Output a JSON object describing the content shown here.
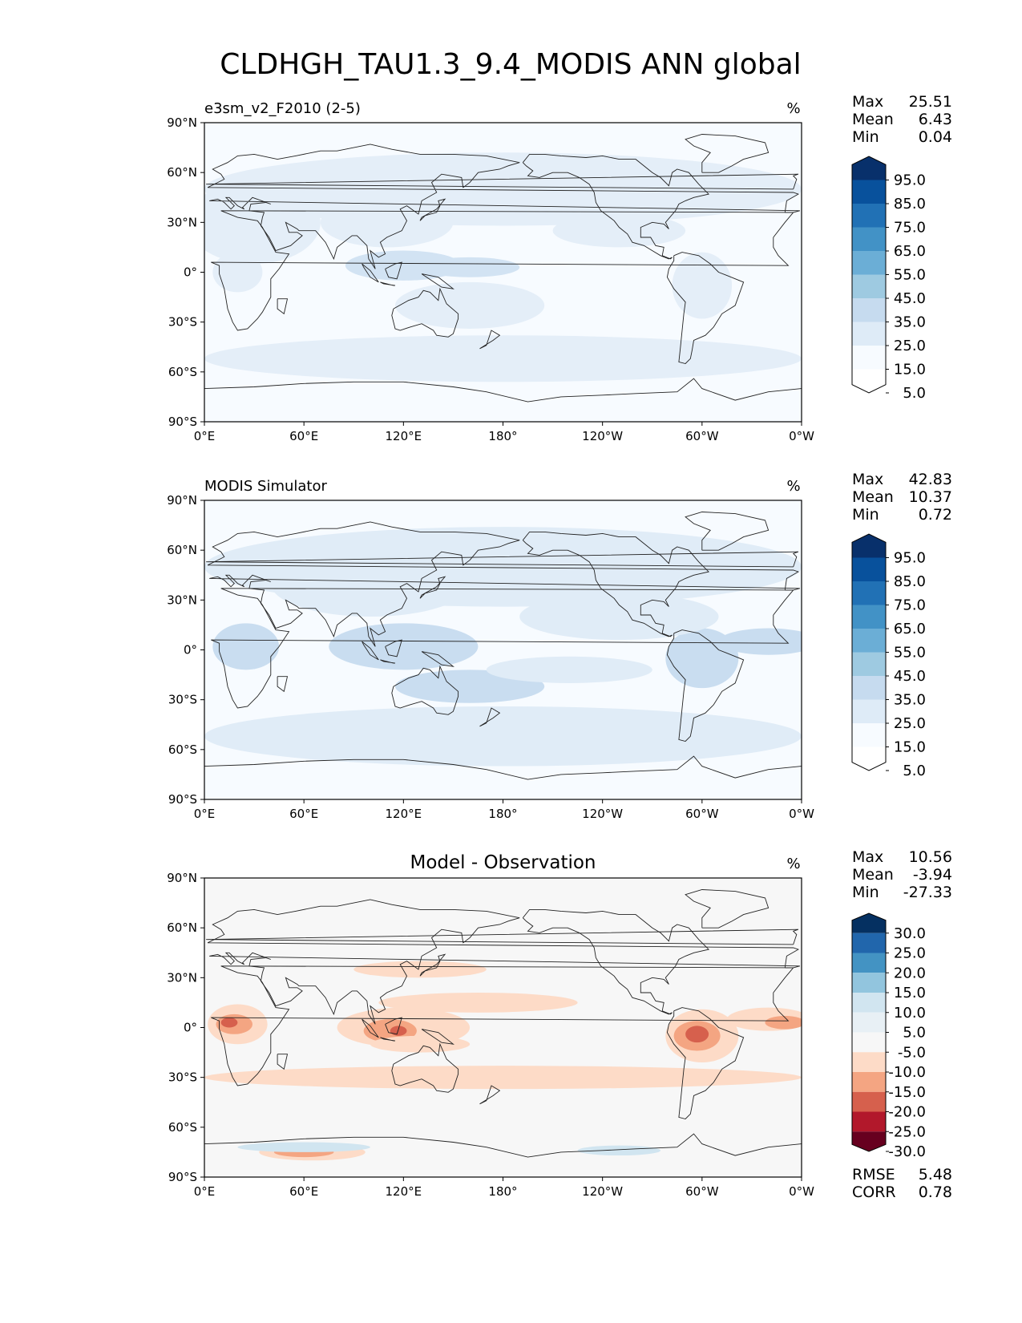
{
  "title": "CLDHGH_TAU1.3_9.4_MODIS ANN global",
  "panels": [
    {
      "subtitle": "e3sm_v2_F2010 (2-5)",
      "units": "%",
      "stats": [
        {
          "label": "Max",
          "value": "25.51"
        },
        {
          "label": "Mean",
          "value": "6.43"
        },
        {
          "label": "Min",
          "value": "0.04"
        }
      ],
      "colorbar": {
        "labels": [
          "95.0",
          "85.0",
          "75.0",
          "65.0",
          "55.0",
          "45.0",
          "35.0",
          "25.0",
          "15.0",
          "5.0"
        ],
        "colors": [
          "#08306b",
          "#08519c",
          "#2171b5",
          "#4292c6",
          "#6baed6",
          "#9ecae1",
          "#c6dbef",
          "#deebf7",
          "#f7fbff",
          "#ffffff"
        ]
      },
      "field_colors": [
        "#f7fbff",
        "#e4eef8",
        "#d2e3f3"
      ]
    },
    {
      "subtitle": "MODIS Simulator",
      "units": "%",
      "stats": [
        {
          "label": "Max",
          "value": "42.83"
        },
        {
          "label": "Mean",
          "value": "10.37"
        },
        {
          "label": "Min",
          "value": "0.72"
        }
      ],
      "colorbar": {
        "labels": [
          "95.0",
          "85.0",
          "75.0",
          "65.0",
          "55.0",
          "45.0",
          "35.0",
          "25.0",
          "15.0",
          "5.0"
        ],
        "colors": [
          "#08306b",
          "#08519c",
          "#2171b5",
          "#4292c6",
          "#6baed6",
          "#9ecae1",
          "#c6dbef",
          "#deebf7",
          "#f7fbff",
          "#ffffff"
        ]
      },
      "field_colors": [
        "#f7fbff",
        "#e0ecf7",
        "#c9ddf0"
      ]
    },
    {
      "subtitle": "Model - Observation",
      "units": "%",
      "stats": [
        {
          "label": "Max",
          "value": "10.56"
        },
        {
          "label": "Mean",
          "value": "-3.94"
        },
        {
          "label": "Min",
          "value": "-27.33"
        }
      ],
      "colorbar": {
        "labels": [
          "30.0",
          "25.0",
          "20.0",
          "15.0",
          "10.0",
          "5.0",
          "-5.0",
          "-10.0",
          "-15.0",
          "-20.0",
          "-25.0",
          "-30.0"
        ],
        "colors": [
          "#053061",
          "#2166ac",
          "#4393c3",
          "#92c5de",
          "#d1e5f0",
          "#e8f0f5",
          "#f7f7f7",
          "#fddbc7",
          "#f4a582",
          "#d6604d",
          "#b2182b",
          "#67001f"
        ]
      },
      "extra_stats": [
        {
          "label": "RMSE",
          "value": "5.48"
        },
        {
          "label": "CORR",
          "value": "0.78"
        }
      ],
      "field_colors": [
        "#f7f7f7",
        "#fddbc7",
        "#f4a582",
        "#d6604d",
        "#b2182b",
        "#d1e5f0"
      ]
    }
  ],
  "chart_data": {
    "type": "heatmap",
    "projection": "equirectangular",
    "lon_ticks": [
      "0°E",
      "60°E",
      "120°E",
      "180°",
      "120°W",
      "60°W",
      "0°W"
    ],
    "lat_ticks": [
      "90°N",
      "60°N",
      "30°N",
      "0°",
      "30°S",
      "60°S",
      "90°S"
    ],
    "xlim": [
      0,
      360
    ],
    "ylim": [
      -90,
      90
    ]
  }
}
